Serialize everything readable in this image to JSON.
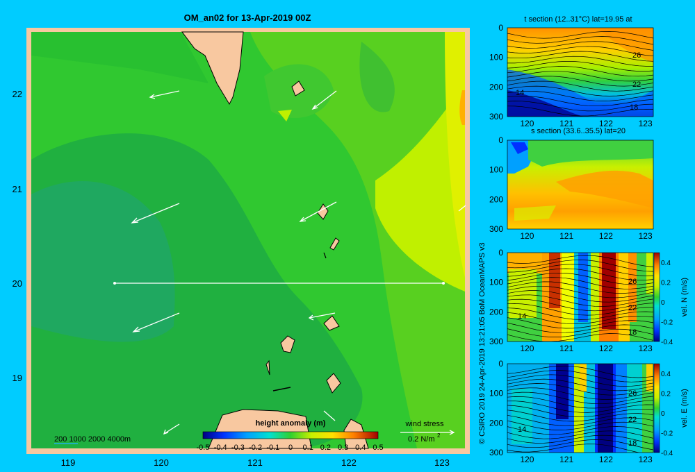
{
  "main_map": {
    "title": "OM_an02 for 13-Apr-2019 00Z",
    "xticks": [
      "119",
      "120",
      "121",
      "122",
      "123"
    ],
    "yticks": [
      "22",
      "21",
      "20",
      "19"
    ],
    "colorbar_title": "height anomaly (m)",
    "colorbar_ticks": [
      "-0.5",
      "-0.4",
      "-0.3",
      "-0.2",
      "-0.1",
      "0",
      "0.1",
      "0.2",
      "0.3",
      "0.4",
      "0.5"
    ],
    "depth_legend": "200  1000  2000  4000m",
    "wind_label": "wind stress",
    "wind_unit": "0.2 N/m",
    "wind_unit_sup": "2"
  },
  "credit": "© CSIRO 2019   24-Apr-2019 13:21:05 BoM OceanMAPS v3",
  "panels": {
    "t_section": {
      "title": "t section (12..31°C) lat=19.95 at",
      "yticks": [
        "0",
        "100",
        "200",
        "300"
      ],
      "xticks": [
        "120",
        "121",
        "122",
        "123"
      ],
      "contour_labels": [
        "26",
        "22",
        "18",
        "14"
      ]
    },
    "s_section": {
      "title": "s section (33.6..35.5) lat=20",
      "yticks": [
        "0",
        "100",
        "200",
        "300"
      ],
      "xticks": [
        "120",
        "121",
        "122",
        "123"
      ]
    },
    "v_section": {
      "yticks": [
        "0",
        "100",
        "200",
        "300"
      ],
      "xticks": [
        "120",
        "121",
        "122",
        "123"
      ],
      "contour_labels": [
        "26",
        "22",
        "18",
        "14"
      ],
      "cbar_ticks": [
        "0.4",
        "0.2",
        "0",
        "-0.2",
        "-0.4"
      ],
      "cbar_label": "vel. N (m/s)"
    },
    "u_section": {
      "yticks": [
        "0",
        "100",
        "200",
        "300"
      ],
      "xticks": [
        "120",
        "121",
        "122",
        "123"
      ],
      "contour_labels": [
        "26",
        "22",
        "18",
        "14"
      ],
      "cbar_ticks": [
        "0.4",
        "0.2",
        "0",
        "-0.2",
        "-0.4"
      ],
      "cbar_label": "vel. E (m/s)"
    }
  },
  "chart_data": [
    {
      "type": "heatmap",
      "title": "OM_an02 for 13-Apr-2019 00Z",
      "xlim": [
        118.5,
        123.5
      ],
      "ylim": [
        18.25,
        22.7
      ],
      "variable": "height anomaly (m)",
      "color_range": [
        -0.5,
        0.5
      ],
      "section_line": {
        "lat": 20,
        "lon_range": [
          119.5,
          123.2
        ]
      }
    },
    {
      "type": "heatmap",
      "title": "t section (12..31°C) lat=19.95 at",
      "xlim": [
        119.5,
        123.2
      ],
      "ylim": [
        300,
        0
      ],
      "color_range": [
        12,
        31
      ]
    },
    {
      "type": "heatmap",
      "title": "s section (33.6..35.5) lat=20",
      "xlim": [
        119.5,
        123.2
      ],
      "ylim": [
        300,
        0
      ],
      "color_range": [
        33.6,
        35.5
      ]
    },
    {
      "type": "heatmap",
      "title": "vel. N (m/s)",
      "xlim": [
        119.5,
        123.2
      ],
      "ylim": [
        300,
        0
      ],
      "color_range": [
        -0.4,
        0.5
      ]
    },
    {
      "type": "heatmap",
      "title": "vel. E (m/s)",
      "xlim": [
        119.5,
        123.2
      ],
      "ylim": [
        300,
        0
      ],
      "color_range": [
        -0.4,
        0.5
      ]
    }
  ]
}
